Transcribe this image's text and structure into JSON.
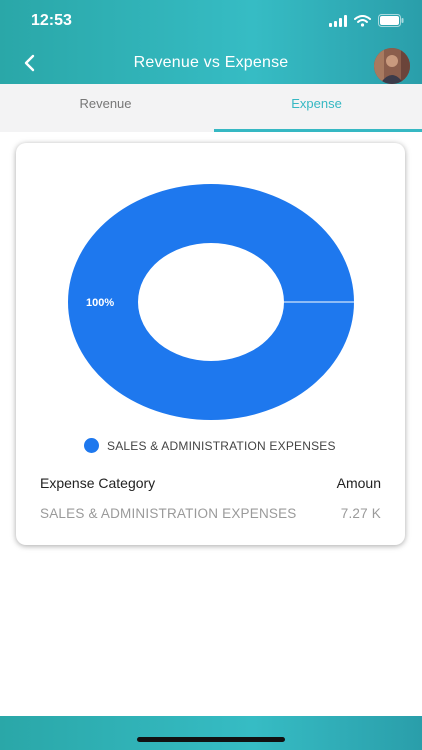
{
  "status_bar": {
    "time": "12:53",
    "icons": [
      "signal-icon",
      "wifi-icon",
      "battery-icon"
    ]
  },
  "nav": {
    "title": "Revenue vs Expense",
    "back_icon": "chevron-left-icon",
    "avatar": "user-avatar"
  },
  "tabs": [
    {
      "label": "Revenue",
      "active": false
    },
    {
      "label": "Expense",
      "active": true
    }
  ],
  "colors": {
    "accent": "#36b8c3",
    "header": "#2aa7a8",
    "chart_blue": "#1e78ee"
  },
  "chart_data": {
    "type": "pie",
    "donut": true,
    "categories": [
      "SALES & ADMINISTRATION EXPENSES"
    ],
    "values": [
      100
    ],
    "slice_labels": [
      "100%"
    ],
    "legend_position": "bottom"
  },
  "table": {
    "headers": [
      "Expense Category",
      "Amoun"
    ],
    "rows": [
      {
        "category": "SALES & ADMINISTRATION EXPENSES",
        "amount": "7.27 K"
      }
    ]
  }
}
